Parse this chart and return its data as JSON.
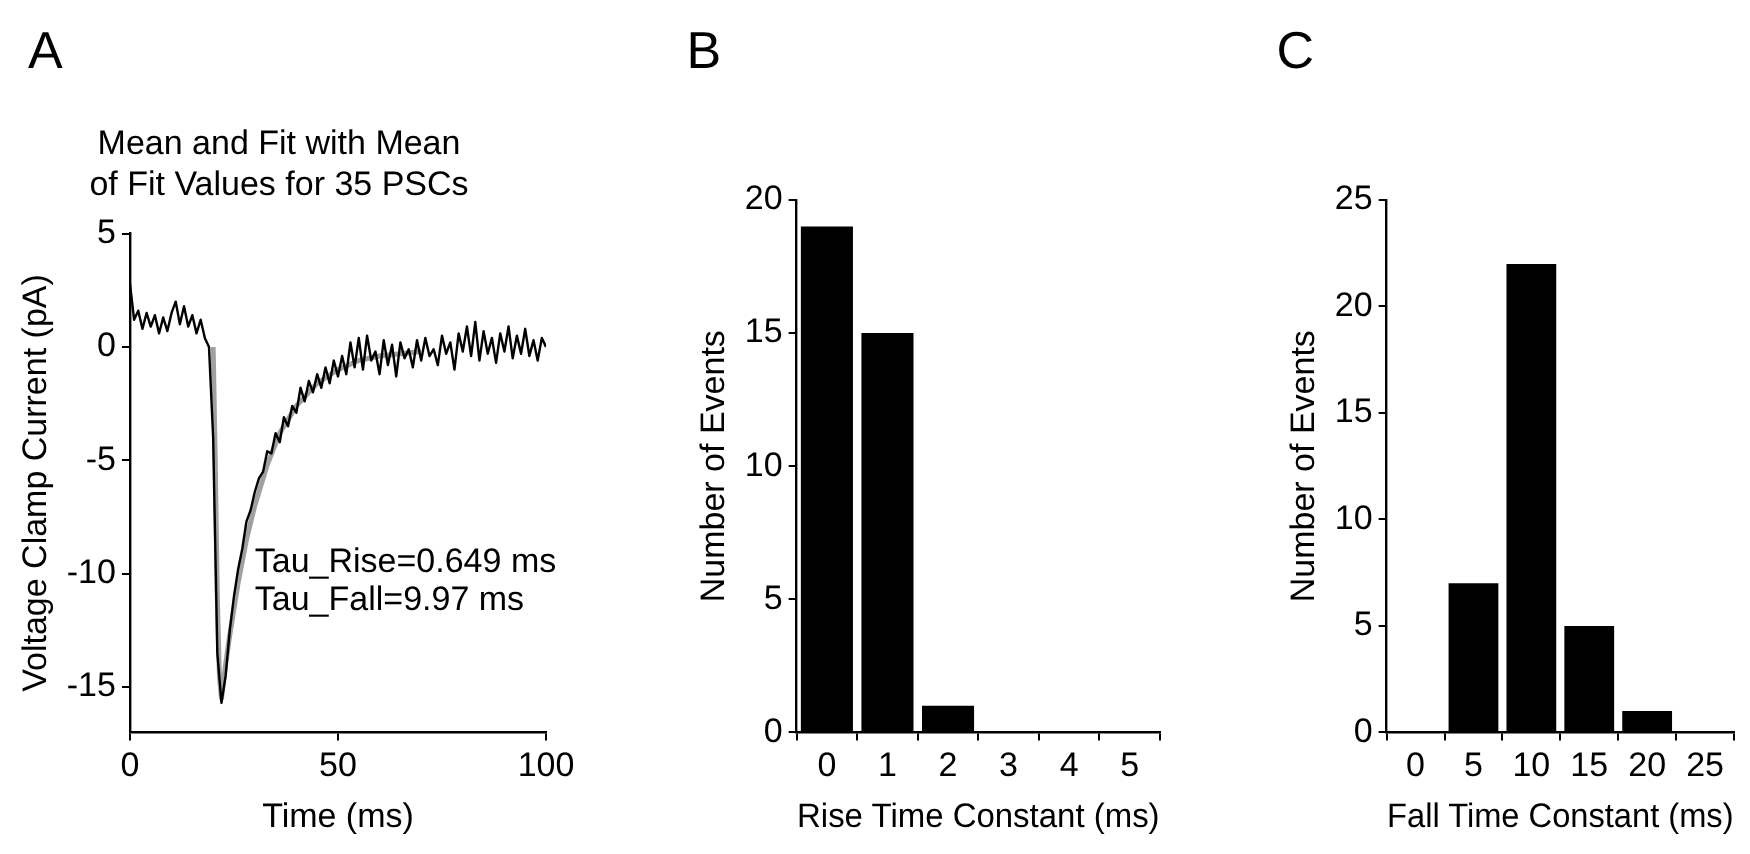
{
  "chart_data": [
    {
      "type": "line",
      "title": "Mean and Fit with Mean of Fit Values for 35 PSCs",
      "xlabel": "Time (ms)",
      "ylabel": "Voltage Clamp Current (pA)",
      "annotations": [
        "A",
        "Tau_Rise=0.649 ms",
        "Tau_Fall=9.97 ms"
      ],
      "xlim": [
        0,
        100
      ],
      "ylim": [
        -17,
        5
      ],
      "xticks": [
        0,
        50,
        100
      ],
      "yticks": [
        -15,
        -10,
        -5,
        0,
        5
      ],
      "series": [
        {
          "color": "#000000",
          "x": [
            0,
            1,
            2,
            3,
            4,
            5,
            6,
            7,
            8,
            9,
            10,
            11,
            12,
            13,
            14,
            15,
            16,
            17,
            18,
            19,
            20,
            21,
            22,
            23,
            24,
            25,
            26,
            27,
            28,
            29,
            30,
            31,
            32,
            33,
            34,
            35,
            36,
            37,
            38,
            39,
            40,
            41,
            42,
            43,
            44,
            45,
            46,
            47,
            48,
            49,
            50,
            51,
            52,
            53,
            54,
            55,
            56,
            57,
            58,
            59,
            60,
            61,
            62,
            63,
            64,
            65,
            66,
            67,
            68,
            69,
            70,
            71,
            72,
            73,
            74,
            75,
            76,
            77,
            78,
            79,
            80,
            81,
            82,
            83,
            84,
            85,
            86,
            87,
            88,
            89,
            90,
            91,
            92,
            93,
            94,
            95,
            96,
            97,
            98,
            99,
            100
          ],
          "values": [
            2.8,
            1.2,
            1.6,
            0.8,
            1.5,
            0.9,
            1.4,
            0.6,
            1.3,
            0.7,
            1.5,
            2.0,
            1.0,
            1.8,
            0.9,
            1.4,
            0.6,
            1.2,
            0.4,
            0.0,
            -4.0,
            -13.5,
            -15.7,
            -14.5,
            -12.5,
            -11.0,
            -9.8,
            -8.9,
            -7.7,
            -7.2,
            -6.4,
            -5.8,
            -5.5,
            -4.6,
            -4.7,
            -3.8,
            -4.2,
            -3.1,
            -3.5,
            -2.6,
            -2.9,
            -1.8,
            -2.4,
            -1.5,
            -2.0,
            -1.2,
            -1.8,
            -0.9,
            -1.6,
            -0.6,
            -1.3,
            -0.4,
            -1.2,
            0.2,
            -0.9,
            0.4,
            -1.0,
            0.5,
            -0.6,
            -0.2,
            -1.2,
            0.3,
            -0.8,
            0.1,
            -1.3,
            0.2,
            -0.5,
            -0.1,
            -0.9,
            0.3,
            -0.6,
            0.4,
            -0.4,
            -0.1,
            -0.8,
            0.5,
            -0.3,
            0.2,
            -1.0,
            0.6,
            -0.2,
            0.9,
            -0.4,
            1.1,
            -0.6,
            0.7,
            -0.3,
            0.4,
            -0.7,
            0.6,
            -0.2,
            0.9,
            -0.5,
            0.5,
            -0.3,
            0.8,
            -0.4,
            0.3,
            -0.6,
            0.4,
            0.0
          ]
        },
        {
          "color": "#a0a0a0",
          "x": [
            20,
            20.5,
            21,
            21.5,
            22,
            23,
            24,
            26,
            28,
            30,
            33,
            36,
            40,
            45,
            50,
            55,
            60,
            65,
            70
          ],
          "values": [
            0,
            -5,
            -11,
            -14.5,
            -15.5,
            -14,
            -12.7,
            -10.4,
            -8.5,
            -7.0,
            -5.2,
            -3.8,
            -2.6,
            -1.6,
            -1.0,
            -0.6,
            -0.4,
            -0.3,
            -0.2
          ]
        }
      ]
    },
    {
      "type": "histogram",
      "xlabel": "Rise Time Constant (ms)",
      "ylabel": "Number of Events",
      "annotations": [
        "B"
      ],
      "bins": [
        -0.5,
        0.5,
        1.5,
        2.5,
        3.5,
        4.5,
        5.5
      ],
      "values": [
        19,
        15,
        1,
        0,
        0,
        0
      ],
      "color": "#000000",
      "xlim": [
        -0.5,
        5.5
      ],
      "ylim": [
        0,
        20
      ],
      "xticks": [
        0,
        1,
        2,
        3,
        4,
        5
      ],
      "yticks": [
        0,
        5,
        10,
        15,
        20
      ]
    },
    {
      "type": "histogram",
      "xlabel": "Fall Time Constant (ms)",
      "ylabel": "Number of Events",
      "annotations": [
        "C"
      ],
      "bins": [
        -2.5,
        2.5,
        7.5,
        12.5,
        17.5,
        22.5,
        27.5
      ],
      "values": [
        0,
        7,
        22,
        5,
        1,
        0
      ],
      "color": "#000000",
      "xlim": [
        -2.5,
        27.5
      ],
      "ylim": [
        0,
        25
      ],
      "xticks": [
        0,
        5,
        10,
        15,
        20,
        25
      ],
      "yticks": [
        0,
        5,
        10,
        15,
        20,
        25
      ]
    }
  ]
}
